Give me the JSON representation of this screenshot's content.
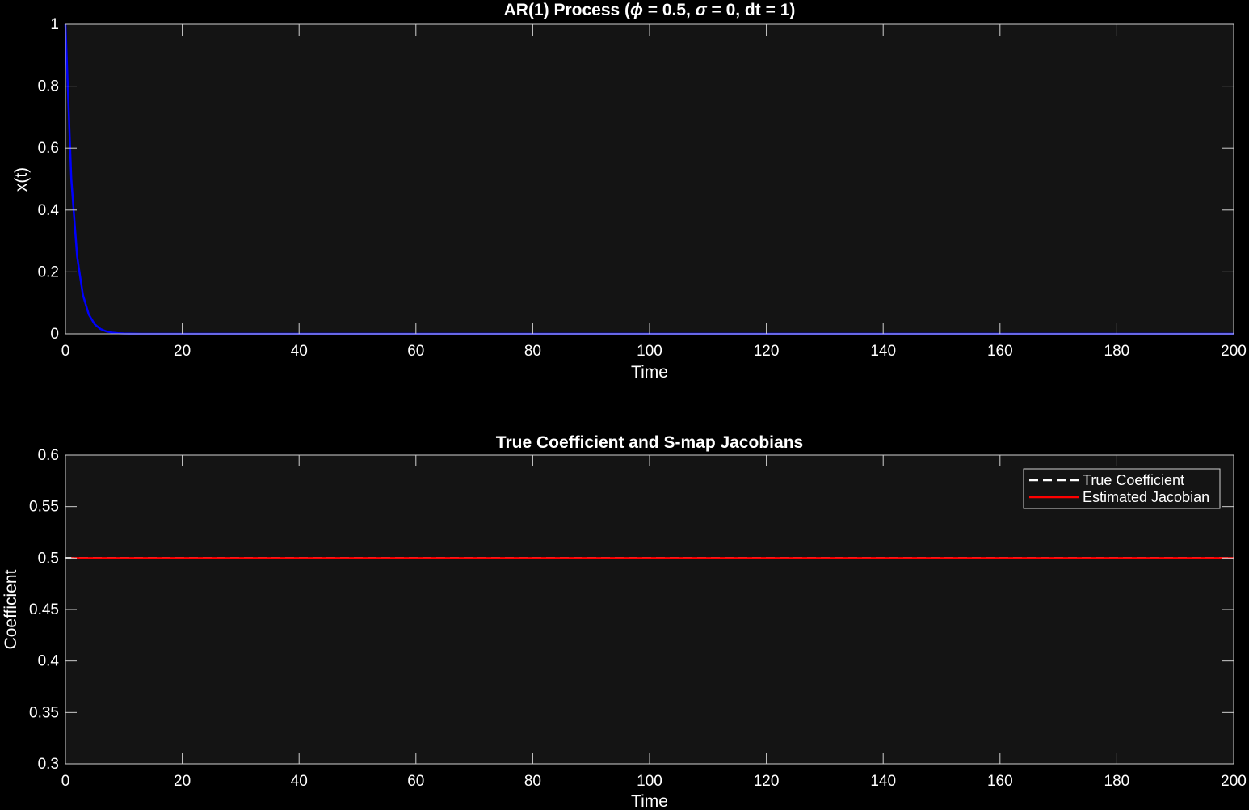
{
  "chart_data": [
    {
      "type": "line",
      "title_parts": [
        "AR(1)  Process  (",
        "ϕ",
        "  =  0.5,  ",
        "σ",
        "  =  0,  dt  =  1)"
      ],
      "xlabel": "Time",
      "ylabel": "x(t)",
      "xlim": [
        0,
        200
      ],
      "ylim": [
        0,
        1
      ],
      "xticks": [
        0,
        20,
        40,
        60,
        80,
        100,
        120,
        140,
        160,
        180,
        200
      ],
      "yticks": [
        0,
        0.2,
        0.4,
        0.6,
        0.8,
        1
      ],
      "ytick_labels": [
        "0",
        "0.2",
        "0.4",
        "0.6",
        "0.8",
        "1"
      ],
      "grid": false,
      "series": [
        {
          "color": "#0000ff",
          "x": [
            0,
            1,
            2,
            3,
            4,
            5,
            6,
            7,
            8,
            9,
            10,
            11,
            12,
            13,
            14,
            15,
            20,
            40,
            60,
            80,
            100,
            120,
            140,
            160,
            180,
            200
          ],
          "y": [
            1,
            0.5,
            0.25,
            0.125,
            0.0625,
            0.03125,
            0.015625,
            0.0078,
            0.0039,
            0.002,
            0.001,
            0.0005,
            0.00024,
            0.00012,
            6e-05,
            3e-05,
            0,
            0,
            0,
            0,
            0,
            0,
            0,
            0,
            0,
            0
          ]
        }
      ]
    },
    {
      "type": "line",
      "title": "True Coefficient and S-map Jacobians",
      "xlabel": "Time",
      "ylabel": "Coefficient",
      "xlim": [
        0,
        200
      ],
      "ylim": [
        0.3,
        0.6
      ],
      "xticks": [
        0,
        20,
        40,
        60,
        80,
        100,
        120,
        140,
        160,
        180,
        200
      ],
      "yticks": [
        0.3,
        0.35,
        0.4,
        0.45,
        0.5,
        0.55,
        0.6
      ],
      "ytick_labels": [
        "0.3",
        "0.35",
        "0.4",
        "0.45",
        "0.5",
        "0.55",
        "0.6"
      ],
      "grid": false,
      "legend": "top-right",
      "series": [
        {
          "name": "True Coefficient",
          "color": "#ffffff",
          "style": "dashed",
          "x": [
            0,
            200
          ],
          "y": [
            0.5,
            0.5
          ]
        },
        {
          "name": "Estimated Jacobian",
          "color": "#ff0000",
          "style": "solid",
          "x": [
            1,
            200
          ],
          "y": [
            0.5,
            0.5
          ]
        }
      ]
    }
  ]
}
